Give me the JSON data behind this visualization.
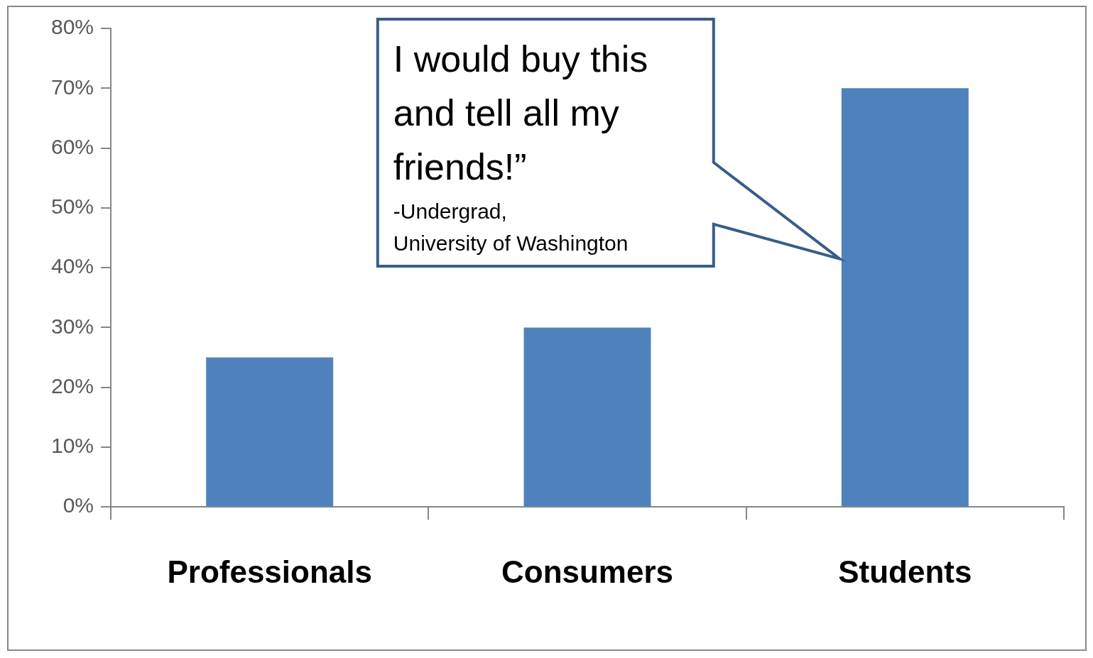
{
  "chart_data": {
    "type": "bar",
    "categories": [
      "Professionals",
      "Consumers",
      "Students"
    ],
    "values": [
      25,
      30,
      70
    ],
    "color": "#4f81bd",
    "ylim": [
      0,
      80
    ],
    "yticks": [
      {
        "value": 0,
        "label": "0%"
      },
      {
        "value": 10,
        "label": "10%"
      },
      {
        "value": 20,
        "label": "20%"
      },
      {
        "value": 30,
        "label": "30%"
      },
      {
        "value": 40,
        "label": "40%"
      },
      {
        "value": 50,
        "label": "50%"
      },
      {
        "value": 60,
        "label": "60%"
      },
      {
        "value": 70,
        "label": "70%"
      },
      {
        "value": 80,
        "label": "80%"
      }
    ],
    "grid": false,
    "legend": false,
    "annotations": [
      "I would buy this and tell all my friends!”",
      "-Undergrad, University of Washington"
    ]
  }
}
